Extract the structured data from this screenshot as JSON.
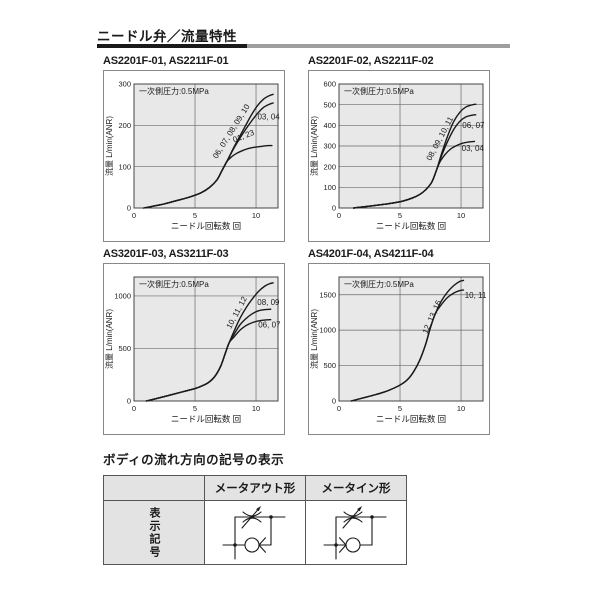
{
  "page": {
    "title": "ニードル弁／流量特性",
    "flow_symbol_section_title": "ボディの流れ方向の記号の表示"
  },
  "colors": {
    "text": "#1a1a1a",
    "plot_bg": "#e8e8e8",
    "grid": "#6a6a6a",
    "axis": "#444444",
    "curve": "#1a1a1a",
    "box_border": "#888888",
    "table_border": "#555555",
    "header_fill": "#e3e3e3",
    "rule_dark": "#1a1a1a",
    "rule_gray": "#9e9e9e"
  },
  "chart_data": [
    {
      "type": "line",
      "title": "AS2201F-01, AS2211F-01",
      "annotation": "一次側圧力:0.5MPa",
      "xlabel": "ニードル回転数 回",
      "ylabel": "流量 L/min(ANR)",
      "xlim": [
        0,
        11.8
      ],
      "ylim": [
        0,
        300
      ],
      "xticks": [
        0,
        5,
        10
      ],
      "yticks": [
        0,
        100,
        200,
        300
      ],
      "grid_x": [
        5,
        10
      ],
      "grid_y": [
        100,
        200
      ],
      "series": [
        {
          "name": "06, 07, 08, 09, 10",
          "label_at": [
            8.15,
            182
          ],
          "label_angle": -58,
          "label_anchor": "middle",
          "points": [
            [
              0.8,
              0
            ],
            [
              1.5,
              4
            ],
            [
              2.5,
              10
            ],
            [
              3.5,
              18
            ],
            [
              4.5,
              26
            ],
            [
              5.5,
              37
            ],
            [
              6.2,
              50
            ],
            [
              6.8,
              68
            ],
            [
              7.2,
              90
            ],
            [
              7.6,
              112
            ],
            [
              8.1,
              142
            ],
            [
              8.6,
              170
            ],
            [
              9.1,
              197
            ],
            [
              9.6,
              224
            ],
            [
              10.1,
              247
            ],
            [
              10.6,
              263
            ],
            [
              11.1,
              272
            ],
            [
              11.4,
              275
            ]
          ]
        },
        {
          "name": "03, 04",
          "label_at": [
            10.12,
            214
          ],
          "label_angle": 0,
          "label_anchor": "start",
          "points": [
            [
              0.8,
              0
            ],
            [
              1.5,
              4
            ],
            [
              2.5,
              10
            ],
            [
              3.5,
              18
            ],
            [
              4.5,
              26
            ],
            [
              5.5,
              37
            ],
            [
              6.2,
              50
            ],
            [
              6.8,
              68
            ],
            [
              7.2,
              90
            ],
            [
              7.6,
              112
            ],
            [
              8.1,
              140
            ],
            [
              8.6,
              165
            ],
            [
              9.1,
              188
            ],
            [
              9.6,
              209
            ],
            [
              10.1,
              228
            ],
            [
              10.6,
              243
            ],
            [
              11.1,
              251
            ],
            [
              11.4,
              254
            ]
          ]
        },
        {
          "name": "01, 23",
          "label_at": [
            9.05,
            168
          ],
          "label_angle": -21,
          "label_anchor": "middle",
          "points": [
            [
              0.8,
              0
            ],
            [
              1.5,
              4
            ],
            [
              2.5,
              10
            ],
            [
              3.5,
              18
            ],
            [
              4.5,
              26
            ],
            [
              5.5,
              37
            ],
            [
              6.2,
              50
            ],
            [
              6.8,
              68
            ],
            [
              7.2,
              90
            ],
            [
              7.6,
              112
            ],
            [
              8.0,
              124
            ],
            [
              8.4,
              132
            ],
            [
              8.9,
              139
            ],
            [
              9.4,
              144
            ],
            [
              9.9,
              147
            ],
            [
              10.4,
              149
            ],
            [
              11.0,
              151
            ],
            [
              11.3,
              151
            ]
          ]
        }
      ]
    },
    {
      "type": "line",
      "title": "AS2201F-02, AS2211F-02",
      "annotation": "一次側圧力:0.5MPa",
      "xlabel": "ニードル回転数 回",
      "ylabel": "流量 L/min(ANR)",
      "xlim": [
        0,
        11.8
      ],
      "ylim": [
        0,
        600
      ],
      "xticks": [
        0,
        5,
        10
      ],
      "yticks": [
        0,
        100,
        200,
        300,
        400,
        500,
        600
      ],
      "grid_x": [
        5,
        10
      ],
      "grid_y": [
        100,
        200,
        300,
        400,
        500
      ],
      "series": [
        {
          "name": "08, 09, 10, 11",
          "label_at": [
            8.45,
            330
          ],
          "label_angle": -62,
          "label_anchor": "middle",
          "points": [
            [
              1.2,
              0
            ],
            [
              2.2,
              7
            ],
            [
              3.2,
              14
            ],
            [
              4.2,
              22
            ],
            [
              5.2,
              33
            ],
            [
              6.0,
              48
            ],
            [
              6.6,
              65
            ],
            [
              7.1,
              88
            ],
            [
              7.6,
              125
            ],
            [
              8.0,
              185
            ],
            [
              8.4,
              262
            ],
            [
              8.9,
              348
            ],
            [
              9.4,
              418
            ],
            [
              9.9,
              463
            ],
            [
              10.4,
              489
            ],
            [
              10.9,
              499
            ],
            [
              11.2,
              502
            ]
          ]
        },
        {
          "name": "06, 07",
          "label_at": [
            10.1,
            386
          ],
          "label_angle": 0,
          "label_anchor": "start",
          "points": [
            [
              1.2,
              0
            ],
            [
              2.2,
              7
            ],
            [
              3.2,
              14
            ],
            [
              4.2,
              22
            ],
            [
              5.2,
              33
            ],
            [
              6.0,
              48
            ],
            [
              6.6,
              65
            ],
            [
              7.1,
              88
            ],
            [
              7.6,
              125
            ],
            [
              8.0,
              185
            ],
            [
              8.4,
              252
            ],
            [
              8.9,
              322
            ],
            [
              9.4,
              380
            ],
            [
              9.9,
              419
            ],
            [
              10.4,
              441
            ],
            [
              10.9,
              449
            ],
            [
              11.2,
              451
            ]
          ]
        },
        {
          "name": "03, 04",
          "label_at": [
            10.05,
            277
          ],
          "label_angle": 0,
          "label_anchor": "start",
          "points": [
            [
              1.2,
              0
            ],
            [
              2.2,
              7
            ],
            [
              3.2,
              14
            ],
            [
              4.2,
              22
            ],
            [
              5.2,
              33
            ],
            [
              6.0,
              48
            ],
            [
              6.6,
              65
            ],
            [
              7.1,
              88
            ],
            [
              7.6,
              125
            ],
            [
              8.0,
              185
            ],
            [
              8.3,
              226
            ],
            [
              8.7,
              259
            ],
            [
              9.1,
              283
            ],
            [
              9.6,
              301
            ],
            [
              10.1,
              313
            ],
            [
              10.6,
              319
            ],
            [
              11.1,
              322
            ]
          ]
        }
      ]
    },
    {
      "type": "line",
      "title": "AS3201F-03, AS3211F-03",
      "annotation": "一次側圧力:0.5MPa",
      "xlabel": "ニードル回転数 回",
      "ylabel": "流量 L/min(ANR)",
      "xlim": [
        0,
        11.8
      ],
      "ylim": [
        0,
        1180
      ],
      "xticks": [
        0,
        5,
        10
      ],
      "yticks": [
        0,
        500,
        1000
      ],
      "grid_x": [
        5,
        10
      ],
      "grid_y": [
        500,
        1000
      ],
      "series": [
        {
          "name": "10, 11, 12",
          "label_at": [
            8.6,
            830
          ],
          "label_angle": -62,
          "label_anchor": "middle",
          "points": [
            [
              1.0,
              0
            ],
            [
              2.0,
              28
            ],
            [
              3.0,
              58
            ],
            [
              4.0,
              88
            ],
            [
              5.0,
              118
            ],
            [
              5.6,
              145
            ],
            [
              6.1,
              175
            ],
            [
              6.6,
              230
            ],
            [
              7.1,
              330
            ],
            [
              7.5,
              460
            ],
            [
              7.8,
              555
            ],
            [
              8.2,
              665
            ],
            [
              8.7,
              790
            ],
            [
              9.2,
              890
            ],
            [
              9.7,
              972
            ],
            [
              10.2,
              1042
            ],
            [
              10.7,
              1092
            ],
            [
              11.1,
              1116
            ],
            [
              11.4,
              1124
            ]
          ]
        },
        {
          "name": "08, 09",
          "label_at": [
            10.1,
            915
          ],
          "label_angle": 0,
          "label_anchor": "start",
          "points": [
            [
              1.0,
              0
            ],
            [
              2.0,
              28
            ],
            [
              3.0,
              58
            ],
            [
              4.0,
              88
            ],
            [
              5.0,
              118
            ],
            [
              5.6,
              145
            ],
            [
              6.1,
              175
            ],
            [
              6.6,
              230
            ],
            [
              7.1,
              330
            ],
            [
              7.5,
              460
            ],
            [
              7.8,
              555
            ],
            [
              8.2,
              635
            ],
            [
              8.7,
              727
            ],
            [
              9.2,
              787
            ],
            [
              9.7,
              831
            ],
            [
              10.2,
              858
            ],
            [
              10.7,
              869
            ],
            [
              11.2,
              873
            ]
          ]
        },
        {
          "name": "06, 07",
          "label_at": [
            10.18,
            698
          ],
          "label_angle": 0,
          "label_anchor": "start",
          "points": [
            [
              1.0,
              0
            ],
            [
              2.0,
              28
            ],
            [
              3.0,
              58
            ],
            [
              4.0,
              88
            ],
            [
              5.0,
              118
            ],
            [
              5.6,
              145
            ],
            [
              6.1,
              175
            ],
            [
              6.6,
              230
            ],
            [
              7.1,
              330
            ],
            [
              7.5,
              460
            ],
            [
              7.8,
              555
            ],
            [
              8.2,
              610
            ],
            [
              8.7,
              676
            ],
            [
              9.2,
              719
            ],
            [
              9.7,
              746
            ],
            [
              10.2,
              762
            ],
            [
              10.7,
              770
            ],
            [
              11.2,
              774
            ]
          ]
        }
      ]
    },
    {
      "type": "line",
      "title": "AS4201F-04, AS4211F-04",
      "annotation": "一次側圧力:0.5MPa",
      "xlabel": "ニードル回転数 回",
      "ylabel": "流量 L/min(ANR)",
      "xlim": [
        0,
        11.8
      ],
      "ylim": [
        0,
        1750
      ],
      "xticks": [
        0,
        5,
        10
      ],
      "yticks": [
        0,
        500,
        1000,
        1500
      ],
      "grid_x": [
        5,
        10
      ],
      "grid_y": [
        500,
        1000,
        1500
      ],
      "series": [
        {
          "name": "12, 13, 16",
          "label_at": [
            7.8,
            1170
          ],
          "label_angle": -66,
          "label_anchor": "middle",
          "points": [
            [
              1.0,
              0
            ],
            [
              2.0,
              45
            ],
            [
              3.0,
              90
            ],
            [
              4.0,
              145
            ],
            [
              5.0,
              225
            ],
            [
              5.6,
              300
            ],
            [
              6.1,
              410
            ],
            [
              6.6,
              570
            ],
            [
              7.1,
              800
            ],
            [
              7.5,
              1040
            ],
            [
              7.9,
              1235
            ],
            [
              8.4,
              1415
            ],
            [
              8.9,
              1540
            ],
            [
              9.4,
              1628
            ],
            [
              9.9,
              1688
            ],
            [
              10.2,
              1702
            ]
          ]
        },
        {
          "name": "10, 11",
          "label_at": [
            10.3,
            1455
          ],
          "label_angle": 0,
          "label_anchor": "start",
          "points": [
            [
              1.0,
              0
            ],
            [
              2.0,
              45
            ],
            [
              3.0,
              90
            ],
            [
              4.0,
              145
            ],
            [
              5.0,
              225
            ],
            [
              5.6,
              300
            ],
            [
              6.1,
              410
            ],
            [
              6.6,
              570
            ],
            [
              7.1,
              800
            ],
            [
              7.5,
              1040
            ],
            [
              7.9,
              1235
            ],
            [
              8.4,
              1362
            ],
            [
              8.9,
              1462
            ],
            [
              9.4,
              1523
            ],
            [
              9.9,
              1558
            ],
            [
              10.2,
              1566
            ]
          ]
        }
      ]
    }
  ],
  "symbol_table": {
    "col_headers": [
      "メータアウト形",
      "メータイン形"
    ],
    "row_header": "表示記号",
    "cells": [
      {
        "icon": "meter-out-flow-symbol",
        "check_valve_seat": "right"
      },
      {
        "icon": "meter-in-flow-symbol",
        "check_valve_seat": "left"
      }
    ]
  }
}
